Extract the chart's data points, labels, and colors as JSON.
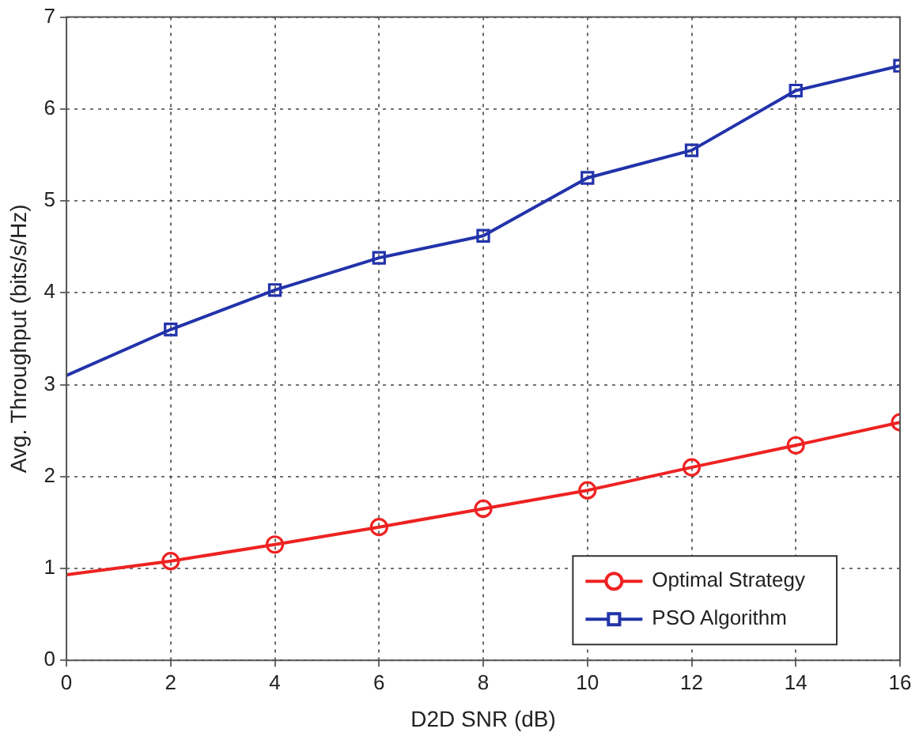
{
  "chart_data": {
    "type": "line",
    "xlabel": "D2D SNR (dB)",
    "ylabel": "Avg. Throughput (bits/s/Hz)",
    "x": [
      0,
      2,
      4,
      6,
      8,
      10,
      12,
      14,
      16
    ],
    "series": [
      {
        "name": "Optimal Strategy",
        "color": "#ee2222",
        "marker": "circle",
        "values": [
          0.93,
          1.08,
          1.26,
          1.45,
          1.65,
          1.85,
          2.1,
          2.34,
          2.59
        ]
      },
      {
        "name": "PSO Algorithm",
        "color": "#2233aa",
        "marker": "square",
        "values": [
          3.1,
          3.6,
          4.03,
          4.38,
          4.62,
          5.25,
          5.55,
          6.2,
          6.47
        ]
      }
    ],
    "xlim": [
      0,
      16
    ],
    "xticks": [
      0,
      2,
      4,
      6,
      8,
      10,
      12,
      14,
      16
    ],
    "ylim": [
      0,
      7
    ],
    "yticks": [
      0,
      1,
      2,
      3,
      4,
      5,
      6,
      7
    ],
    "grid": true,
    "legend": "bottom right",
    "line_style": "solid"
  }
}
